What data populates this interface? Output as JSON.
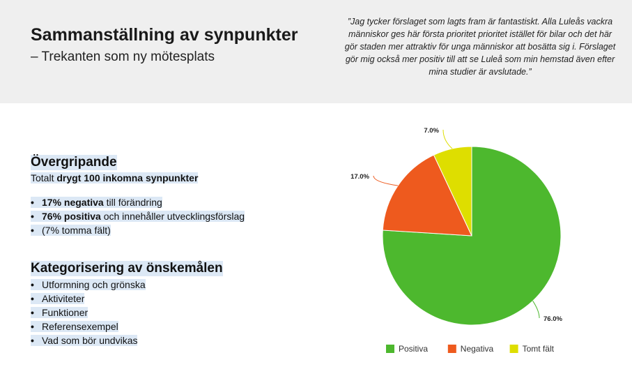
{
  "header": {
    "title": "Sammanställning av synpunkter",
    "subtitle": "– Trekanten som ny mötesplats",
    "quote": "”Jag tycker förslaget som lagts fram är fantastiskt. Alla Luleås vackra människor ges här första prioritet prioritet istället för bilar och det här gör staden mer attraktiv för unga människor att bosätta sig i. Förslaget gör mig också mer positiv till att se Luleå som min hemstad även efter mina studier är avslutade.”"
  },
  "overview": {
    "heading": "Övergripande",
    "total_prefix": "Totalt ",
    "total_bold": "drygt 100 inkomna synpunkter",
    "bullets": [
      {
        "bold": "17% negativa",
        "rest": " till förändring"
      },
      {
        "bold": "76% positiva",
        "rest": " och innehåller utvecklingsförslag"
      },
      {
        "bold": "",
        "rest": "(7% tomma fält)"
      }
    ]
  },
  "categories": {
    "heading": "Kategorisering av önskemålen",
    "items": [
      "Utformning och grönska",
      "Aktiviteter",
      "Funktioner",
      "Referensexempel",
      "Vad som bör undvikas"
    ]
  },
  "chart_data": {
    "type": "pie",
    "title": "",
    "slices": [
      {
        "name": "Positiva",
        "value": 76.0,
        "label": "76.0%",
        "color": "#4db82e"
      },
      {
        "name": "Negativa",
        "value": 17.0,
        "label": "17.0%",
        "color": "#ee5a1e"
      },
      {
        "name": "Tomt fält",
        "value": 7.0,
        "label": "7.0%",
        "color": "#dede00"
      }
    ],
    "legend_position": "bottom"
  }
}
